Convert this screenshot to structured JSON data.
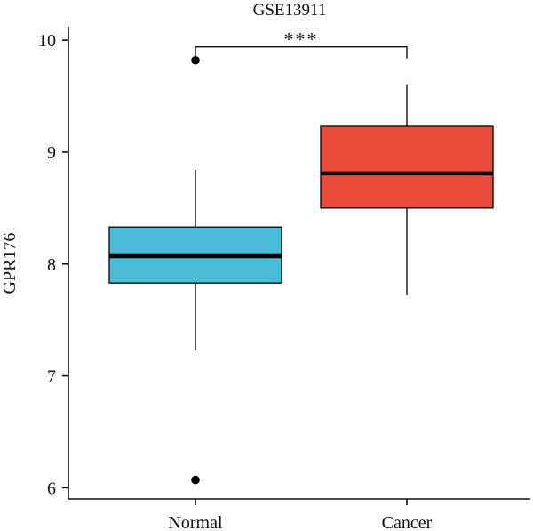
{
  "chart_data": {
    "type": "box",
    "title": "GSE13911",
    "xlabel": "",
    "ylabel": "GPR176",
    "ylim": [
      5.9,
      10.12
    ],
    "yticks": [
      6,
      7,
      8,
      9,
      10
    ],
    "grid": false,
    "legend": "none",
    "categories": [
      "Normal",
      "Cancer"
    ],
    "boxes": [
      {
        "category": "Normal",
        "color": "#4bbcd8",
        "whisker_low": 7.23,
        "q1": 7.83,
        "median": 8.07,
        "q3": 8.33,
        "whisker_high": 8.84,
        "outliers": [
          9.82,
          6.07
        ]
      },
      {
        "category": "Cancer",
        "color": "#e84b3a",
        "whisker_low": 7.72,
        "q1": 8.5,
        "median": 8.81,
        "q3": 9.23,
        "whisker_high": 9.6,
        "outliers": []
      }
    ],
    "significance": {
      "label": "***",
      "from": "Normal",
      "to": "Cancer",
      "y": 9.94
    }
  }
}
